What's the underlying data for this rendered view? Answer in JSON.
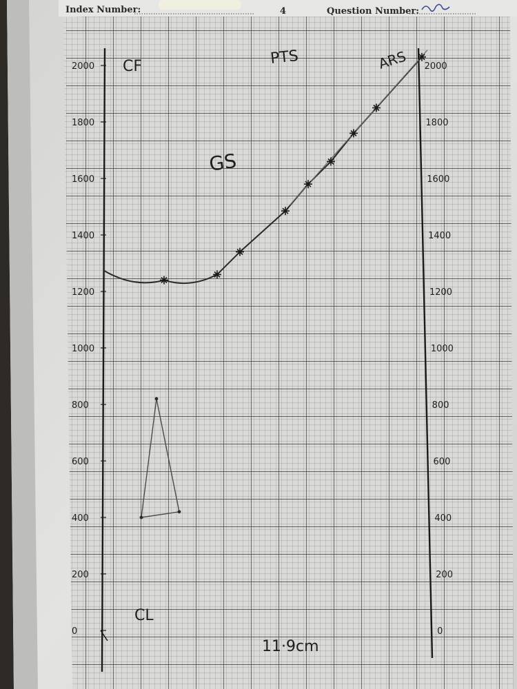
{
  "header": {
    "index_label": "Index Number:",
    "page_number": "4",
    "question_label": "Question Number:"
  },
  "chart_data": {
    "type": "line",
    "title": "",
    "annotations": {
      "top_center": "PTS",
      "top_right": "ARS",
      "top_left": "CF",
      "curve_label": "GS",
      "lower_left": "CL",
      "bottom_center": "11·9cm"
    },
    "left_axis": {
      "ticks": [
        "2000",
        "1800",
        "1600",
        "1400",
        "1200",
        "1000",
        "800",
        "600",
        "400",
        "200",
        "0"
      ]
    },
    "right_axis": {
      "ticks": [
        "2000",
        "1800",
        "1600",
        "1400",
        "1200",
        "1000",
        "800",
        "600",
        "400",
        "200",
        "0"
      ]
    },
    "series": [
      {
        "values": [
          [
            0,
            1275
          ],
          [
            4,
            1240
          ],
          [
            7.5,
            1260
          ],
          [
            9,
            1340
          ],
          [
            12,
            1485
          ],
          [
            13.5,
            1580
          ],
          [
            15,
            1660
          ],
          [
            16.5,
            1760
          ],
          [
            18,
            1850
          ],
          [
            21,
            2030
          ]
        ]
      },
      {
        "values": [
          [
            2.5,
            400
          ],
          [
            3.5,
            820
          ],
          [
            5,
            420
          ]
        ]
      }
    ]
  }
}
